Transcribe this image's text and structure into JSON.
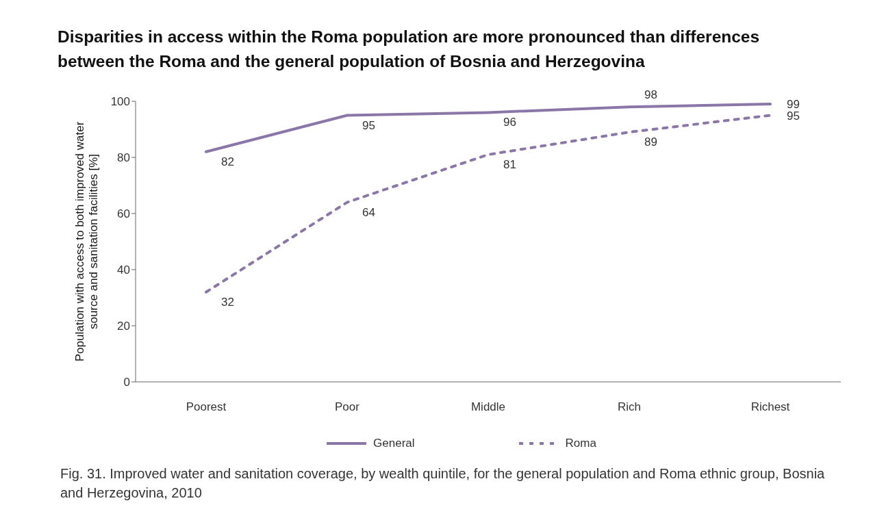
{
  "chart_data": {
    "type": "line",
    "title": "Disparities in access within the Roma population are more pronounced than differences between the Roma and the general population of Bosnia and Herzegovina",
    "ylabel": "Population with access to both improved water source and sanitation facilities [%]",
    "categories": [
      "Poorest",
      "Poor",
      "Middle",
      "Rich",
      "Richest"
    ],
    "series": [
      {
        "name": "General",
        "color": "#8b76a8",
        "values": [
          82,
          95,
          96,
          98,
          99
        ],
        "line_style": "solid"
      },
      {
        "name": "Roma",
        "color": "#8b76a8",
        "values": [
          32,
          64,
          81,
          89,
          95
        ],
        "line_style": "dashed"
      }
    ],
    "ylim": [
      0,
      100
    ],
    "yticks": [
      0,
      20,
      40,
      60,
      80,
      100
    ],
    "grid": false,
    "legend": "bottom",
    "marker": "none",
    "data_labels": true,
    "annotations": [
      "Fig. 31. Improved water and sanitation coverage, by wealth quintile, for the general population and Roma ethnic group, Bosnia and Herzegovina, 2010"
    ]
  }
}
